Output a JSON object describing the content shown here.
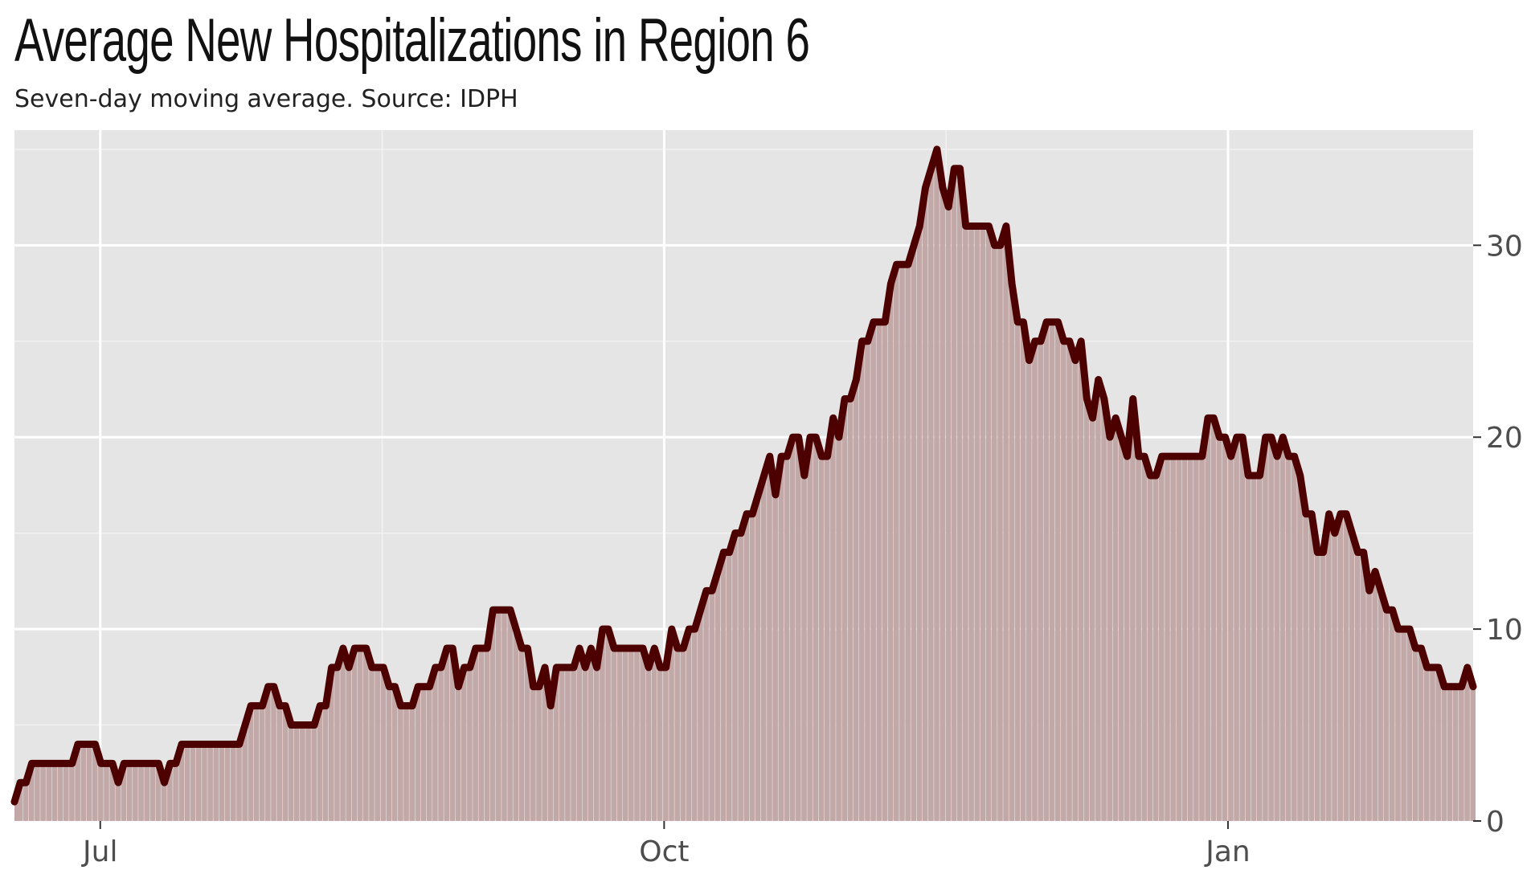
{
  "title": "Average New Hospitalizations in Region 6",
  "subtitle": "Seven-day moving average. Source: IDPH",
  "chart_data": {
    "type": "area",
    "title": "Average New Hospitalizations in Region 6",
    "subtitle": "Seven-day moving average. Source: IDPH",
    "xlabel": "",
    "ylabel": "",
    "x_start": "2020-06-17",
    "x_end": "2021-02-10",
    "x_ticks": [
      {
        "label": "Jul",
        "date": "2020-07-01"
      },
      {
        "label": "Oct",
        "date": "2020-10-01"
      },
      {
        "label": "Jan",
        "date": "2021-01-01"
      }
    ],
    "y_ticks": [
      0,
      10,
      20,
      30
    ],
    "ylim": [
      0,
      36
    ],
    "grid": true,
    "y_axis_side": "right",
    "line_color": "#4d0000",
    "fill_color": "#c3a8a8",
    "panel_color": "#e5e5e5",
    "values": [
      1,
      2,
      2,
      3,
      3,
      3,
      3,
      3,
      3,
      3,
      3,
      4,
      4,
      4,
      4,
      3,
      3,
      3,
      2,
      3,
      3,
      3,
      3,
      3,
      3,
      3,
      2,
      3,
      3,
      4,
      4,
      4,
      4,
      4,
      4,
      4,
      4,
      4,
      4,
      4,
      5,
      6,
      6,
      6,
      7,
      7,
      6,
      6,
      5,
      5,
      5,
      5,
      5,
      6,
      6,
      8,
      8,
      9,
      8,
      9,
      9,
      9,
      8,
      8,
      8,
      7,
      7,
      6,
      6,
      6,
      7,
      7,
      7,
      8,
      8,
      9,
      9,
      7,
      8,
      8,
      9,
      9,
      9,
      11,
      11,
      11,
      11,
      10,
      9,
      9,
      7,
      7,
      8,
      6,
      8,
      8,
      8,
      8,
      9,
      8,
      9,
      8,
      10,
      10,
      9,
      9,
      9,
      9,
      9,
      9,
      8,
      9,
      8,
      8,
      10,
      9,
      9,
      10,
      10,
      11,
      12,
      12,
      13,
      14,
      14,
      15,
      15,
      16,
      16,
      17,
      18,
      19,
      17,
      19,
      19,
      20,
      20,
      18,
      20,
      20,
      19,
      19,
      21,
      20,
      22,
      22,
      23,
      25,
      25,
      26,
      26,
      26,
      28,
      29,
      29,
      29,
      30,
      31,
      33,
      34,
      35,
      33,
      32,
      34,
      34,
      31,
      31,
      31,
      31,
      31,
      30,
      30,
      31,
      28,
      26,
      26,
      24,
      25,
      25,
      26,
      26,
      26,
      25,
      25,
      24,
      25,
      22,
      21,
      23,
      22,
      20,
      21,
      20,
      19,
      22,
      19,
      19,
      18,
      18,
      19,
      19,
      19,
      19,
      19,
      19,
      19,
      19,
      21,
      21,
      20,
      20,
      19,
      20,
      20,
      18,
      18,
      18,
      20,
      20,
      19,
      20,
      19,
      19,
      18,
      16,
      16,
      14,
      14,
      16,
      15,
      16,
      16,
      15,
      14,
      14,
      12,
      13,
      12,
      11,
      11,
      10,
      10,
      10,
      9,
      9,
      8,
      8,
      8,
      7,
      7,
      7,
      7,
      8,
      7
    ]
  }
}
